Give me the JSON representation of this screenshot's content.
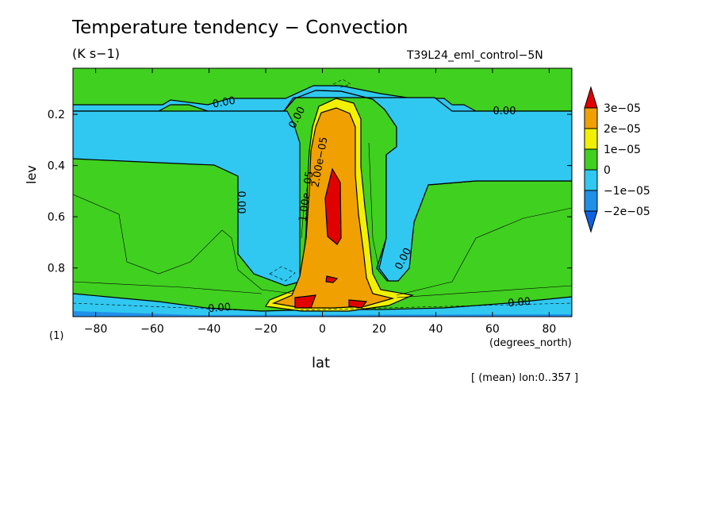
{
  "chart_data": {
    "type": "contour",
    "title": "Temperature tendency − Convection",
    "units": "(K s−1)",
    "run_id": "T39L24_eml_control−5N",
    "xlabel": "lat",
    "ylabel": "lev",
    "x_units": "(degrees_north)",
    "y_multiplier": "(1)",
    "note": "[ (mean) lon:0..357 ]",
    "xlim": [
      -88,
      88
    ],
    "ylim": [
      0.02,
      0.99
    ],
    "y_inverted": true,
    "x_ticks": [
      -80,
      -60,
      -40,
      -20,
      0,
      20,
      40,
      60,
      80
    ],
    "x_tick_labels": [
      "−80",
      "−60",
      "−40",
      "−20",
      "0",
      "20",
      "40",
      "60",
      "80"
    ],
    "y_ticks": [
      0.2,
      0.4,
      0.6,
      0.8
    ],
    "y_tick_labels": [
      "0.2",
      "0.4",
      "0.6",
      "0.8"
    ],
    "contour_labels": [
      "0.00",
      "0.00",
      "0.00",
      "0.00",
      "0.00",
      "0.00",
      "0.00",
      "1.00e−05",
      "2.00e−05"
    ],
    "legend": {
      "placement": "right",
      "levels": [
        "3e−05",
        "2e−05",
        "1e−05",
        "0",
        "−1e−05",
        "−2e−05"
      ],
      "colors": [
        "#e00000",
        "#f0a000",
        "#f0f000",
        "#40d020",
        "#30c8f0",
        "#2090e8",
        "#1060e0"
      ]
    },
    "regions": [
      {
        "class": ">3e-05",
        "color": "#e00000",
        "pts": [
          [
            4,
            0.39
          ],
          [
            8,
            0.45
          ],
          [
            8,
            0.6
          ],
          [
            6,
            0.67
          ],
          [
            2,
            0.6
          ],
          [
            1,
            0.5
          ]
        ]
      },
      {
        "class": ">3e-05",
        "color": "#e00000",
        "pts": [
          [
            1,
            0.8
          ],
          [
            6,
            0.815
          ],
          [
            5,
            0.835
          ],
          [
            1,
            0.835
          ]
        ]
      },
      {
        "class": ">3e-05",
        "color": "#e00000",
        "pts": [
          [
            -9,
            0.95
          ],
          [
            -2,
            0.94
          ],
          [
            -4,
            0.97
          ],
          [
            -9,
            0.97
          ]
        ]
      },
      {
        "class": ">3e-05",
        "color": "#e00000",
        "pts": [
          [
            9,
            0.95
          ],
          [
            16,
            0.955
          ],
          [
            13,
            0.97
          ],
          [
            9,
            0.965
          ]
        ]
      }
    ]
  }
}
